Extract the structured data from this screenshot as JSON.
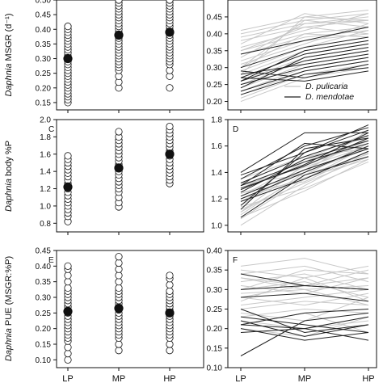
{
  "chart_data": [
    {
      "panel": "A",
      "panel_label": "",
      "type": "scatter",
      "ylabel": "Daphnia MSGR (d⁻¹)",
      "ylabel_italic": "Daphnia",
      "ylabel_rest": " MSGR (d⁻¹)",
      "ylim": [
        0.125,
        0.5
      ],
      "yticks": [
        0.15,
        0.2,
        0.25,
        0.3,
        0.35,
        0.4,
        0.45,
        0.5
      ],
      "categories": [
        "LP",
        "MP",
        "HP"
      ],
      "means": [
        0.3,
        0.38,
        0.39
      ],
      "points": {
        "LP": [
          0.15,
          0.16,
          0.17,
          0.18,
          0.19,
          0.2,
          0.21,
          0.22,
          0.23,
          0.24,
          0.25,
          0.26,
          0.27,
          0.28,
          0.29,
          0.31,
          0.32,
          0.33,
          0.34,
          0.35,
          0.36,
          0.37,
          0.38,
          0.39,
          0.4,
          0.41
        ],
        "MP": [
          0.2,
          0.22,
          0.24,
          0.26,
          0.27,
          0.28,
          0.29,
          0.3,
          0.31,
          0.32,
          0.33,
          0.34,
          0.35,
          0.36,
          0.37,
          0.39,
          0.4,
          0.41,
          0.42,
          0.43,
          0.44,
          0.45,
          0.46,
          0.47,
          0.48,
          0.49,
          0.5
        ],
        "HP": [
          0.2,
          0.24,
          0.26,
          0.28,
          0.29,
          0.3,
          0.31,
          0.32,
          0.33,
          0.34,
          0.35,
          0.36,
          0.37,
          0.38,
          0.4,
          0.41,
          0.42,
          0.43,
          0.44,
          0.45,
          0.46,
          0.47,
          0.48,
          0.49,
          0.5
        ]
      }
    },
    {
      "panel": "B",
      "panel_label": "",
      "type": "line",
      "ylim": [
        0.175,
        0.5
      ],
      "yticks": [
        0.2,
        0.25,
        0.3,
        0.35,
        0.4,
        0.45
      ],
      "categories": [
        "LP",
        "MP",
        "HP"
      ],
      "legend": [
        {
          "name": "D. pulicaria",
          "color": "#c8c8c8"
        },
        {
          "name": "D. mendotae",
          "color": "#222222"
        }
      ],
      "series_pulicaria": [
        [
          0.41,
          0.45,
          0.47
        ],
        [
          0.4,
          0.44,
          0.46
        ],
        [
          0.39,
          0.43,
          0.45
        ],
        [
          0.38,
          0.42,
          0.44
        ],
        [
          0.37,
          0.46,
          0.43
        ],
        [
          0.36,
          0.41,
          0.46
        ],
        [
          0.35,
          0.4,
          0.42
        ],
        [
          0.34,
          0.39,
          0.41
        ],
        [
          0.33,
          0.43,
          0.44
        ],
        [
          0.32,
          0.38,
          0.4
        ],
        [
          0.31,
          0.37,
          0.43
        ],
        [
          0.3,
          0.4,
          0.39
        ],
        [
          0.29,
          0.36,
          0.41
        ],
        [
          0.28,
          0.35,
          0.38
        ],
        [
          0.27,
          0.34,
          0.37
        ],
        [
          0.26,
          0.33,
          0.36
        ],
        [
          0.25,
          0.32,
          0.35
        ],
        [
          0.24,
          0.31,
          0.34
        ],
        [
          0.23,
          0.3,
          0.33
        ],
        [
          0.22,
          0.29,
          0.32
        ],
        [
          0.21,
          0.28,
          0.31
        ],
        [
          0.2,
          0.27,
          0.3
        ],
        [
          0.3,
          0.44,
          0.42
        ],
        [
          0.35,
          0.42,
          0.4
        ],
        [
          0.28,
          0.45,
          0.44
        ]
      ],
      "series_mendotae": [
        [
          0.34,
          0.38,
          0.42
        ],
        [
          0.3,
          0.36,
          0.39
        ],
        [
          0.27,
          0.34,
          0.37
        ],
        [
          0.26,
          0.32,
          0.35
        ],
        [
          0.25,
          0.3,
          0.33
        ],
        [
          0.28,
          0.31,
          0.34
        ],
        [
          0.23,
          0.29,
          0.32
        ],
        [
          0.22,
          0.28,
          0.3
        ],
        [
          0.29,
          0.27,
          0.31
        ],
        [
          0.27,
          0.26,
          0.29
        ],
        [
          0.24,
          0.33,
          0.36
        ],
        [
          0.26,
          0.35,
          0.38
        ]
      ]
    },
    {
      "panel": "C",
      "panel_label": "C",
      "type": "scatter",
      "ylabel": "Daphnia body %P",
      "ylabel_italic": "Daphnia",
      "ylabel_rest": " body %P",
      "ylim": [
        0.7,
        2.0
      ],
      "yticks": [
        0.8,
        1.0,
        1.2,
        1.4,
        1.6,
        1.8,
        2.0
      ],
      "categories": [
        "LP",
        "MP",
        "HP"
      ],
      "means": [
        1.22,
        1.44,
        1.6
      ],
      "points": {
        "LP": [
          0.82,
          0.88,
          0.92,
          0.96,
          1.0,
          1.04,
          1.08,
          1.12,
          1.16,
          1.2,
          1.26,
          1.3,
          1.34,
          1.38,
          1.42,
          1.46,
          1.5,
          1.54,
          1.58
        ],
        "MP": [
          0.99,
          1.04,
          1.1,
          1.16,
          1.2,
          1.24,
          1.28,
          1.32,
          1.36,
          1.4,
          1.48,
          1.52,
          1.56,
          1.6,
          1.64,
          1.68,
          1.72,
          1.76,
          1.8,
          1.86
        ],
        "HP": [
          1.26,
          1.3,
          1.34,
          1.38,
          1.42,
          1.46,
          1.5,
          1.54,
          1.58,
          1.64,
          1.68,
          1.72,
          1.76,
          1.8,
          1.84,
          1.88,
          1.92
        ]
      }
    },
    {
      "panel": "D",
      "panel_label": "D",
      "type": "line",
      "ylim": [
        0.95,
        1.8
      ],
      "yticks": [
        1.0,
        1.2,
        1.4,
        1.6,
        1.8
      ],
      "categories": [
        "LP",
        "MP",
        "HP"
      ],
      "series_pulicaria": [
        [
          1.0,
          1.3,
          1.55
        ],
        [
          1.05,
          1.35,
          1.6
        ],
        [
          1.08,
          1.4,
          1.58
        ],
        [
          1.1,
          1.38,
          1.62
        ],
        [
          1.12,
          1.32,
          1.52
        ],
        [
          1.15,
          1.45,
          1.64
        ],
        [
          1.18,
          1.42,
          1.66
        ],
        [
          1.2,
          1.36,
          1.5
        ],
        [
          1.22,
          1.48,
          1.68
        ],
        [
          1.25,
          1.33,
          1.56
        ],
        [
          1.28,
          1.5,
          1.7
        ],
        [
          1.3,
          1.44,
          1.6
        ],
        [
          1.32,
          1.38,
          1.54
        ],
        [
          1.14,
          1.28,
          1.48
        ],
        [
          1.1,
          1.46,
          1.62
        ],
        [
          1.35,
          1.52,
          1.58
        ],
        [
          1.06,
          1.26,
          1.5
        ],
        [
          1.24,
          1.4,
          1.72
        ]
      ],
      "series_mendotae": [
        [
          1.4,
          1.7,
          1.7
        ],
        [
          1.38,
          1.55,
          1.76
        ],
        [
          1.35,
          1.6,
          1.74
        ],
        [
          1.32,
          1.52,
          1.68
        ],
        [
          1.3,
          1.48,
          1.62
        ],
        [
          1.28,
          1.45,
          1.66
        ],
        [
          1.25,
          1.5,
          1.64
        ],
        [
          1.22,
          1.42,
          1.58
        ],
        [
          1.2,
          1.4,
          1.6
        ],
        [
          1.18,
          1.35,
          1.56
        ],
        [
          1.15,
          1.55,
          1.72
        ],
        [
          1.12,
          1.58,
          1.66
        ],
        [
          1.06,
          1.38,
          1.52
        ],
        [
          1.3,
          1.62,
          1.58
        ],
        [
          1.27,
          1.46,
          1.7
        ]
      ]
    },
    {
      "panel": "E",
      "panel_label": "E",
      "type": "scatter",
      "ylabel": "Daphnia PUE (MSGR:%P)",
      "ylabel_italic": "Daphnia",
      "ylabel_rest": " PUE (MSGR:%P)",
      "ylim": [
        0.075,
        0.45
      ],
      "yticks": [
        0.1,
        0.15,
        0.2,
        0.25,
        0.3,
        0.35,
        0.4,
        0.45
      ],
      "categories": [
        "LP",
        "MP",
        "HP"
      ],
      "means": [
        0.255,
        0.265,
        0.25
      ],
      "points": {
        "LP": [
          0.1,
          0.12,
          0.14,
          0.16,
          0.17,
          0.18,
          0.19,
          0.2,
          0.21,
          0.22,
          0.23,
          0.24,
          0.25,
          0.26,
          0.27,
          0.28,
          0.29,
          0.3,
          0.31,
          0.32,
          0.33,
          0.35,
          0.37,
          0.39,
          0.4
        ],
        "MP": [
          0.13,
          0.15,
          0.17,
          0.18,
          0.19,
          0.2,
          0.21,
          0.22,
          0.23,
          0.24,
          0.25,
          0.26,
          0.27,
          0.28,
          0.29,
          0.3,
          0.31,
          0.32,
          0.33,
          0.35,
          0.37,
          0.39,
          0.41,
          0.43
        ],
        "HP": [
          0.13,
          0.15,
          0.17,
          0.18,
          0.19,
          0.2,
          0.21,
          0.22,
          0.23,
          0.24,
          0.25,
          0.26,
          0.27,
          0.28,
          0.29,
          0.3,
          0.31,
          0.32,
          0.34,
          0.36,
          0.37
        ]
      }
    },
    {
      "panel": "F",
      "panel_label": "F",
      "type": "line",
      "ylim": [
        0.1,
        0.4
      ],
      "yticks": [
        0.1,
        0.15,
        0.2,
        0.25,
        0.3,
        0.35,
        0.4
      ],
      "categories": [
        "LP",
        "MP",
        "HP"
      ],
      "series_pulicaria": [
        [
          0.36,
          0.38,
          0.34
        ],
        [
          0.35,
          0.33,
          0.36
        ],
        [
          0.34,
          0.36,
          0.32
        ],
        [
          0.33,
          0.31,
          0.35
        ],
        [
          0.32,
          0.34,
          0.3
        ],
        [
          0.31,
          0.29,
          0.33
        ],
        [
          0.3,
          0.32,
          0.28
        ],
        [
          0.29,
          0.3,
          0.31
        ],
        [
          0.28,
          0.26,
          0.29
        ],
        [
          0.27,
          0.33,
          0.27
        ],
        [
          0.26,
          0.28,
          0.3
        ],
        [
          0.25,
          0.27,
          0.26
        ],
        [
          0.24,
          0.22,
          0.28
        ],
        [
          0.23,
          0.25,
          0.24
        ],
        [
          0.22,
          0.2,
          0.22
        ],
        [
          0.21,
          0.24,
          0.19
        ],
        [
          0.2,
          0.18,
          0.23
        ],
        [
          0.3,
          0.35,
          0.34
        ],
        [
          0.33,
          0.3,
          0.26
        ],
        [
          0.28,
          0.31,
          0.33
        ]
      ],
      "series_mendotae": [
        [
          0.34,
          0.31,
          0.3
        ],
        [
          0.3,
          0.31,
          0.3
        ],
        [
          0.28,
          0.29,
          0.27
        ],
        [
          0.25,
          0.19,
          0.21
        ],
        [
          0.22,
          0.18,
          0.21
        ],
        [
          0.21,
          0.2,
          0.23
        ],
        [
          0.2,
          0.17,
          0.19
        ],
        [
          0.19,
          0.2,
          0.17
        ],
        [
          0.21,
          0.24,
          0.25
        ],
        [
          0.13,
          0.22,
          0.24
        ],
        [
          0.23,
          0.21,
          0.19
        ]
      ]
    }
  ]
}
